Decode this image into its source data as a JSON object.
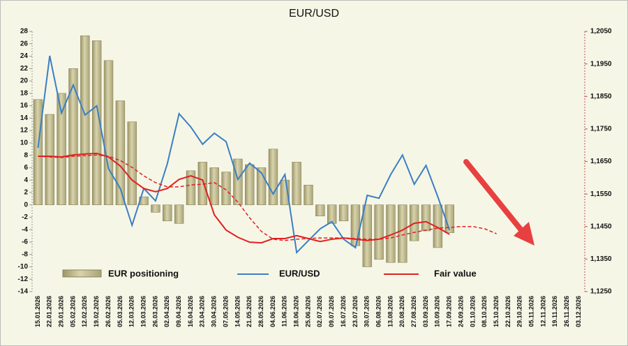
{
  "chart_data": {
    "type": "bar-line",
    "title": "EUR/USD",
    "categories": [
      "15.01.2026",
      "22.01.2026",
      "29.01.2026",
      "05.02.2026",
      "12.02.2026",
      "19.02.2026",
      "26.02.2026",
      "05.03.2026",
      "12.03.2026",
      "19.03.2026",
      "26.03.2026",
      "02.04.2026",
      "09.04.2026",
      "16.04.2026",
      "23.04.2026",
      "30.04.2026",
      "07.05.2026",
      "14.05.2026",
      "21.05.2026",
      "28.05.2026",
      "04.06.2026",
      "11.06.2026",
      "18.06.2026",
      "25.06.2026",
      "02.07.2026",
      "09.07.2026",
      "16.07.2026",
      "23.07.2026",
      "30.07.2026",
      "06.08.2026",
      "13.08.2026",
      "20.08.2026",
      "27.08.2026",
      "03.09.2026",
      "10.09.2026",
      "17.09.2026",
      "24.09.2026",
      "01.10.2026",
      "08.10.2026",
      "15.10.2026",
      "22.10.2026",
      "29.10.2026",
      "05.11.2026",
      "12.11.2026",
      "19.11.2026",
      "26.11.2026",
      "03.12.2026"
    ],
    "series": [
      {
        "name": "EUR positioning",
        "type": "bar",
        "color": "#bdb68a",
        "values": [
          17,
          14.6,
          18,
          22,
          27.3,
          26.5,
          23.3,
          16.8,
          13.4,
          1.3,
          -1.2,
          -2.6,
          -3,
          5.5,
          6.9,
          6,
          5.3,
          7.4,
          6.5,
          6,
          9,
          4,
          6.9,
          3.2,
          -1.8,
          -3,
          -2.6,
          -6.6,
          -10,
          -8.8,
          -9.3,
          -9.3,
          -5.8,
          -4.2,
          -6.9,
          -4.5,
          null,
          null,
          null,
          null,
          null,
          null,
          null,
          null,
          null,
          null,
          null
        ]
      },
      {
        "name": "EUR/USD",
        "type": "line",
        "axis": "y2",
        "color": "#3a7fc4",
        "values": [
          1.1692,
          1.1975,
          1.1799,
          1.1885,
          1.1793,
          1.1821,
          1.1628,
          1.1567,
          1.1454,
          1.1567,
          1.1529,
          1.1643,
          1.1797,
          1.1756,
          1.1703,
          1.1737,
          1.1711,
          1.1595,
          1.1645,
          1.1615,
          1.155,
          1.161,
          1.137,
          1.1407,
          1.1443,
          1.1465,
          1.1411,
          1.1385,
          1.1546,
          1.1537,
          1.161,
          1.167,
          1.158,
          1.1638,
          1.1542,
          1.1439,
          null,
          null,
          null,
          null,
          null,
          null,
          null,
          null,
          null,
          null,
          null
        ]
      },
      {
        "name": "Fair value",
        "type": "line",
        "axis": "y2",
        "color": "#e02020",
        "values": [
          1.1666,
          1.1666,
          1.1664,
          1.167,
          1.1673,
          1.1675,
          1.1664,
          1.1636,
          1.1593,
          1.1567,
          1.1557,
          1.1567,
          1.1595,
          1.1606,
          1.1593,
          1.1486,
          1.1439,
          1.1417,
          1.1402,
          1.14,
          1.1413,
          1.1413,
          1.1422,
          1.1413,
          1.1404,
          1.1411,
          1.1415,
          1.1411,
          1.1407,
          1.1411,
          1.1424,
          1.1439,
          1.146,
          1.1465,
          1.1447,
          1.1426,
          null,
          null,
          null,
          null,
          null,
          null,
          null,
          null,
          null,
          null,
          null
        ]
      },
      {
        "type": "line",
        "axis": "y2",
        "dash": true,
        "color": "#e02020",
        "values": [
          1.1666,
          1.1664,
          1.1662,
          1.1666,
          1.1668,
          1.167,
          1.1666,
          1.1653,
          1.1632,
          1.1606,
          1.1585,
          1.1572,
          1.1572,
          1.1578,
          1.158,
          1.1585,
          1.1563,
          1.1525,
          1.1477,
          1.1435,
          1.1411,
          1.1407,
          1.1411,
          1.1413,
          1.1415,
          1.1415,
          1.1415,
          1.1413,
          1.1411,
          1.1411,
          1.1415,
          1.1424,
          1.1432,
          1.1439,
          1.1445,
          1.1447,
          1.145,
          1.145,
          1.1443,
          1.1428,
          null,
          null,
          null,
          null,
          null,
          null,
          null
        ]
      }
    ],
    "ylim": [
      -14,
      28
    ],
    "yticks": [
      -14,
      -12,
      -10,
      -8,
      -6,
      -4,
      -2,
      0,
      2,
      4,
      6,
      8,
      10,
      12,
      14,
      16,
      18,
      20,
      22,
      24,
      26,
      28
    ],
    "y2lim": [
      1.125,
      1.205
    ],
    "y2ticks": [
      {
        "value": 1.125,
        "label": "1,1250"
      },
      {
        "value": 1.135,
        "label": "1,1350"
      },
      {
        "value": 1.145,
        "label": "1,1450"
      },
      {
        "value": 1.155,
        "label": "1,1550"
      },
      {
        "value": 1.165,
        "label": "1,1650"
      },
      {
        "value": 1.175,
        "label": "1,1750"
      },
      {
        "value": 1.185,
        "label": "1,1850"
      },
      {
        "value": 1.195,
        "label": "1,1950"
      },
      {
        "value": 1.205,
        "label": "1,2050"
      }
    ]
  }
}
